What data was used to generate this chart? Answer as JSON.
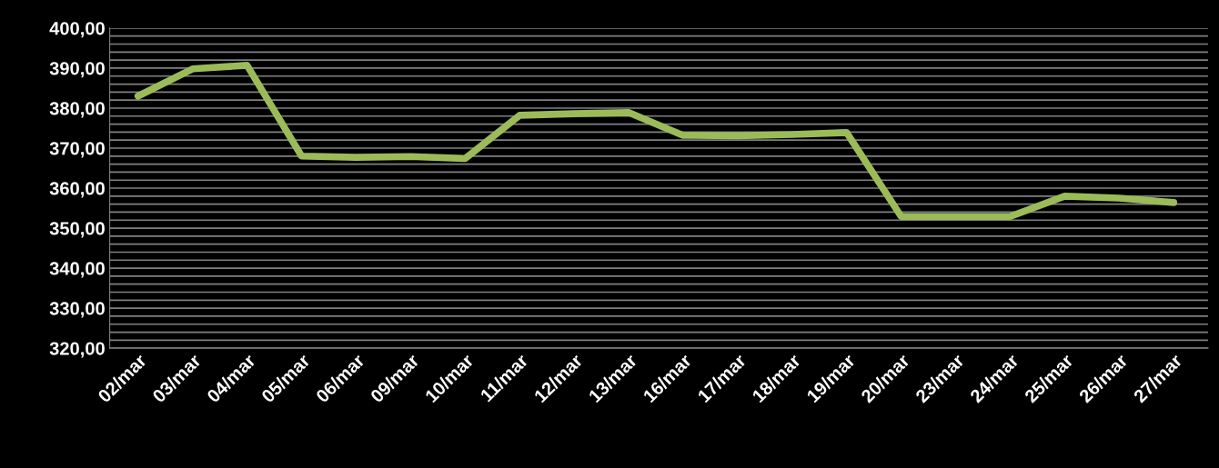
{
  "chart_data": {
    "type": "line",
    "categories": [
      "02/mar",
      "03/mar",
      "04/mar",
      "05/mar",
      "06/mar",
      "09/mar",
      "10/mar",
      "11/mar",
      "12/mar",
      "13/mar",
      "16/mar",
      "17/mar",
      "18/mar",
      "19/mar",
      "20/mar",
      "23/mar",
      "24/mar",
      "25/mar",
      "26/mar",
      "27/mar"
    ],
    "series": [
      {
        "color": "#9bbb59",
        "values": [
          383.0,
          389.8,
          390.7,
          368.0,
          367.7,
          367.9,
          367.4,
          378.2,
          378.6,
          378.9,
          373.2,
          373.1,
          373.4,
          373.9,
          352.9,
          352.9,
          352.9,
          358.0,
          357.5,
          356.4
        ]
      }
    ],
    "ylim": [
      320,
      400
    ],
    "yticks": [
      {
        "value": 320,
        "label": "320,00"
      },
      {
        "value": 322,
        "label": null
      },
      {
        "value": 324,
        "label": null
      },
      {
        "value": 326,
        "label": null
      },
      {
        "value": 328,
        "label": null
      },
      {
        "value": 330,
        "label": "330,00"
      },
      {
        "value": 332,
        "label": null
      },
      {
        "value": 334,
        "label": null
      },
      {
        "value": 336,
        "label": null
      },
      {
        "value": 338,
        "label": null
      },
      {
        "value": 340,
        "label": "340,00"
      },
      {
        "value": 342,
        "label": null
      },
      {
        "value": 344,
        "label": null
      },
      {
        "value": 346,
        "label": null
      },
      {
        "value": 348,
        "label": null
      },
      {
        "value": 350,
        "label": "350,00"
      },
      {
        "value": 352,
        "label": null
      },
      {
        "value": 354,
        "label": null
      },
      {
        "value": 356,
        "label": null
      },
      {
        "value": 358,
        "label": null
      },
      {
        "value": 360,
        "label": "360,00"
      },
      {
        "value": 362,
        "label": null
      },
      {
        "value": 364,
        "label": null
      },
      {
        "value": 366,
        "label": null
      },
      {
        "value": 368,
        "label": null
      },
      {
        "value": 370,
        "label": "370,00"
      },
      {
        "value": 372,
        "label": null
      },
      {
        "value": 374,
        "label": null
      },
      {
        "value": 376,
        "label": null
      },
      {
        "value": 378,
        "label": null
      },
      {
        "value": 380,
        "label": "380,00"
      },
      {
        "value": 382,
        "label": null
      },
      {
        "value": 384,
        "label": null
      },
      {
        "value": 386,
        "label": null
      },
      {
        "value": 388,
        "label": null
      },
      {
        "value": 390,
        "label": "390,00"
      },
      {
        "value": 392,
        "label": null
      },
      {
        "value": 394,
        "label": null
      },
      {
        "value": 396,
        "label": null
      },
      {
        "value": 398,
        "label": null
      },
      {
        "value": 400,
        "label": "400,00"
      }
    ],
    "grid": "y",
    "marker": "none",
    "line_style": "solid"
  }
}
